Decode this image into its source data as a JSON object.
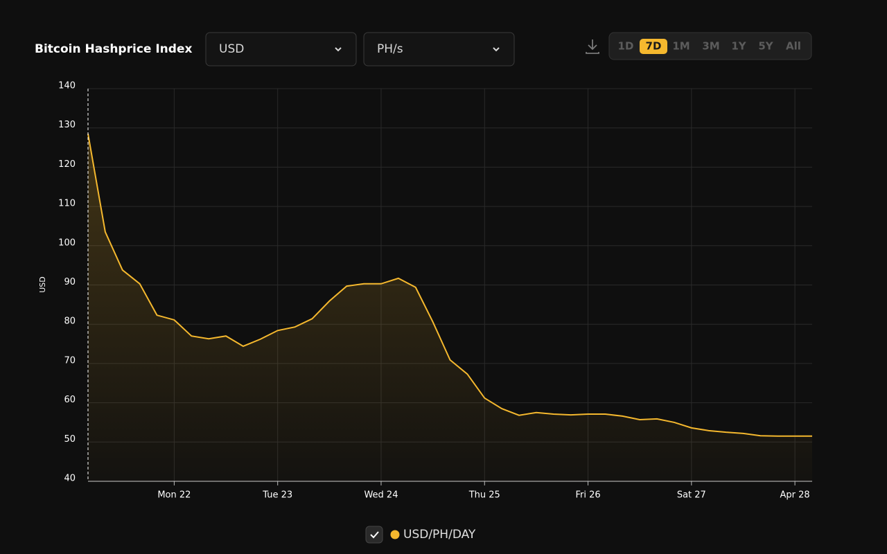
{
  "header": {
    "title": "Bitcoin Hashprice Index",
    "dropdowns": [
      "USD",
      "PH/s"
    ],
    "ranges": [
      "1D",
      "7D",
      "1M",
      "3M",
      "1Y",
      "5Y",
      "All"
    ],
    "active_range": "7D"
  },
  "chart_data": {
    "type": "line",
    "y_label": "USD",
    "categories": [
      null,
      null,
      null,
      null,
      null,
      "Mon 22",
      null,
      null,
      null,
      null,
      null,
      "Tue 23",
      null,
      null,
      null,
      null,
      null,
      "Wed 24",
      null,
      null,
      null,
      null,
      null,
      "Thu 25",
      null,
      null,
      null,
      null,
      null,
      "Fri 26",
      null,
      null,
      null,
      null,
      null,
      "Sat 27",
      null,
      null,
      null,
      null,
      null,
      "Apr 28",
      null
    ],
    "series": [
      {
        "name": "USD/PH/DAY",
        "color": "#f5b82e",
        "values": [
          128.5,
          103.5,
          93.8,
          90.3,
          82.3,
          81.1,
          77.0,
          76.3,
          77.0,
          74.4,
          76.2,
          78.4,
          79.3,
          81.4,
          85.9,
          89.7,
          90.3,
          90.3,
          91.7,
          89.4,
          80.6,
          70.9,
          67.3,
          61.2,
          58.5,
          56.8,
          57.5,
          57.1,
          56.9,
          57.1,
          57.1,
          56.6,
          55.7,
          55.9,
          55.0,
          53.6,
          52.9,
          52.5,
          52.2,
          51.6,
          51.5,
          51.5,
          51.5
        ]
      }
    ],
    "ylim": [
      40,
      140
    ],
    "yticks": [
      40,
      50,
      60,
      70,
      80,
      90,
      100,
      110,
      120,
      130,
      140
    ],
    "grid": true,
    "area": true
  }
}
